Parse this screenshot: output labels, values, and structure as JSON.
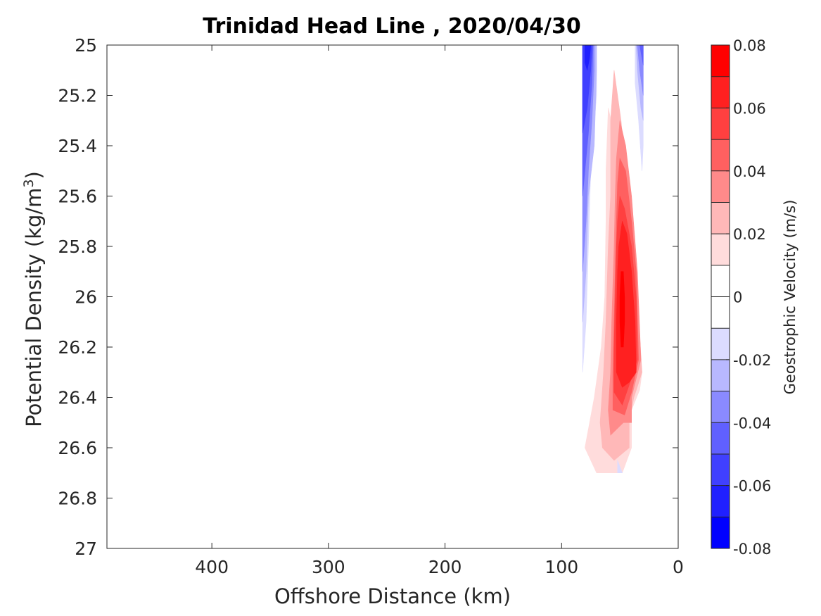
{
  "chart_data": {
    "type": "contour",
    "title": "Trinidad Head Line , 2020/04/30",
    "xlabel": "Offshore Distance (km)",
    "ylabel_main": "Potential Density (kg/m",
    "ylabel_sup": "3",
    "ylabel_close": ")",
    "xlim": [
      490,
      0
    ],
    "ylim": [
      25,
      27
    ],
    "x_reversed": true,
    "y_reversed": true,
    "xticks": [
      400,
      300,
      200,
      100,
      0
    ],
    "xtick_labels": [
      "400",
      "300",
      "200",
      "100",
      "0"
    ],
    "yticks": [
      25,
      25.2,
      25.4,
      25.6,
      25.8,
      26,
      26.2,
      26.4,
      26.6,
      26.8,
      27
    ],
    "ytick_labels": [
      "25",
      "25.2",
      "25.4",
      "25.6",
      "25.8",
      "26",
      "26.2",
      "26.4",
      "26.6",
      "26.8",
      "27"
    ],
    "colorbar": {
      "label": "Geostrophic Velocity (m/s)",
      "limits": [
        -0.08,
        0.08
      ],
      "ticks": [
        0.08,
        0.06,
        0.04,
        0.02,
        0,
        -0.02,
        -0.04,
        -0.06,
        -0.08
      ],
      "tick_labels": [
        "0.08",
        "0.06",
        "0.04",
        "0.02",
        "0",
        "-0.02",
        "-0.04",
        "-0.06",
        "-0.08"
      ],
      "bands_top_to_bottom": [
        "#ff0000",
        "#ff2020",
        "#ff4040",
        "#ff6060",
        "#ff8a8a",
        "#ffb8b8",
        "#ffdcdc",
        "#ffffff",
        "#ffffff",
        "#dcdcff",
        "#b8b8ff",
        "#8a8aff",
        "#6060ff",
        "#4040ff",
        "#2020ff",
        "#0000ff"
      ]
    },
    "contour_regions": [
      {
        "level": 0.005,
        "color": "#ffdcdc",
        "points": [
          [
            60,
            25.25
          ],
          [
            55,
            25.35
          ],
          [
            52,
            25.5
          ],
          [
            50,
            25.6
          ],
          [
            38,
            26.1
          ],
          [
            31,
            26.3
          ],
          [
            33,
            26.37
          ],
          [
            40,
            26.45
          ],
          [
            40,
            26.6
          ],
          [
            48,
            26.7
          ],
          [
            70,
            26.7
          ],
          [
            80,
            26.6
          ],
          [
            72,
            26.4
          ],
          [
            66,
            26.2
          ],
          [
            63,
            26.0
          ],
          [
            62,
            25.7
          ],
          [
            62,
            25.5
          ]
        ]
      },
      {
        "level": 0.015,
        "color": "#ffb8b8",
        "points": [
          [
            55,
            25.1
          ],
          [
            49,
            25.3
          ],
          [
            45,
            25.5
          ],
          [
            38,
            25.8
          ],
          [
            31,
            26.3
          ],
          [
            38,
            26.4
          ],
          [
            42,
            26.5
          ],
          [
            42,
            26.6
          ],
          [
            55,
            26.65
          ],
          [
            65,
            26.6
          ],
          [
            67,
            26.5
          ],
          [
            64,
            26.3
          ],
          [
            62,
            26.1
          ],
          [
            60,
            25.8
          ],
          [
            58,
            25.6
          ],
          [
            58,
            25.3
          ]
        ]
      },
      {
        "level": 0.025,
        "color": "#ff8a8a",
        "points": [
          [
            50,
            25.3
          ],
          [
            45,
            25.4
          ],
          [
            40,
            25.6
          ],
          [
            35,
            25.9
          ],
          [
            32,
            26.25
          ],
          [
            40,
            26.4
          ],
          [
            40,
            26.5
          ],
          [
            47,
            26.5
          ],
          [
            58,
            26.55
          ],
          [
            60,
            26.45
          ],
          [
            58,
            26.3
          ],
          [
            57,
            26.1
          ],
          [
            55,
            25.8
          ],
          [
            54,
            25.6
          ],
          [
            53,
            25.45
          ]
        ]
      },
      {
        "level": 0.035,
        "color": "#ff6060",
        "points": [
          [
            50,
            25.45
          ],
          [
            45,
            25.5
          ],
          [
            40,
            25.7
          ],
          [
            36,
            25.9
          ],
          [
            34,
            26.25
          ],
          [
            40,
            26.38
          ],
          [
            46,
            26.47
          ],
          [
            56,
            26.45
          ],
          [
            56,
            26.3
          ],
          [
            55,
            26.1
          ],
          [
            54,
            25.9
          ],
          [
            53,
            25.7
          ],
          [
            52,
            25.55
          ]
        ]
      },
      {
        "level": 0.045,
        "color": "#ff4040",
        "points": [
          [
            50,
            25.6
          ],
          [
            46,
            25.65
          ],
          [
            40,
            25.8
          ],
          [
            36,
            26.0
          ],
          [
            35,
            26.25
          ],
          [
            42,
            26.35
          ],
          [
            48,
            26.43
          ],
          [
            55,
            26.38
          ],
          [
            55,
            26.2
          ],
          [
            54,
            26.0
          ],
          [
            53,
            25.8
          ],
          [
            52,
            25.7
          ]
        ]
      },
      {
        "level": 0.055,
        "color": "#ff2020",
        "points": [
          [
            48,
            25.7
          ],
          [
            44,
            25.75
          ],
          [
            40,
            25.9
          ],
          [
            37,
            26.1
          ],
          [
            36,
            26.3
          ],
          [
            42,
            26.34
          ],
          [
            48,
            26.36
          ],
          [
            53,
            26.3
          ],
          [
            53,
            26.1
          ],
          [
            52,
            25.9
          ],
          [
            51,
            25.8
          ]
        ]
      },
      {
        "level": 0.065,
        "color": "#ff0000",
        "points": [
          [
            49,
            25.9
          ],
          [
            47,
            25.9
          ],
          [
            46,
            26.0
          ],
          [
            46,
            26.1
          ],
          [
            47,
            26.2
          ],
          [
            49,
            26.2
          ],
          [
            50,
            26.1
          ],
          [
            50,
            26.0
          ]
        ]
      },
      {
        "level": -0.005,
        "color": "#dcdcff",
        "points": [
          [
            82,
            25.0
          ],
          [
            70,
            25.0
          ],
          [
            70,
            25.2
          ],
          [
            75,
            25.5
          ],
          [
            77,
            25.8
          ],
          [
            79,
            26.1
          ],
          [
            82,
            26.3
          ]
        ]
      },
      {
        "level": -0.005,
        "color": "#dcdcff",
        "points": [
          [
            30,
            25.0
          ],
          [
            37,
            25.0
          ],
          [
            37,
            25.15
          ],
          [
            34,
            25.3
          ],
          [
            31,
            25.5
          ],
          [
            30,
            25.4
          ]
        ]
      },
      {
        "level": -0.005,
        "color": "#dcdcff",
        "points": [
          [
            48,
            26.7
          ],
          [
            52,
            26.7
          ],
          [
            52,
            26.65
          ]
        ]
      },
      {
        "level": -0.015,
        "color": "#b8b8ff",
        "points": [
          [
            82,
            25.0
          ],
          [
            70,
            25.0
          ],
          [
            70,
            25.1
          ],
          [
            72,
            25.4
          ],
          [
            77,
            25.6
          ],
          [
            79,
            25.9
          ],
          [
            82,
            26.1
          ]
        ]
      },
      {
        "level": -0.015,
        "color": "#b8b8ff",
        "points": [
          [
            30,
            25.0
          ],
          [
            36,
            25.0
          ],
          [
            35,
            25.1
          ],
          [
            32,
            25.25
          ],
          [
            30,
            25.3
          ]
        ]
      },
      {
        "level": -0.025,
        "color": "#8a8aff",
        "points": [
          [
            82,
            25.0
          ],
          [
            72,
            25.0
          ],
          [
            72,
            25.1
          ],
          [
            74,
            25.3
          ],
          [
            77,
            25.5
          ],
          [
            79,
            25.7
          ],
          [
            82,
            25.9
          ]
        ]
      },
      {
        "level": -0.025,
        "color": "#8a8aff",
        "points": [
          [
            30,
            25.0
          ],
          [
            35,
            25.0
          ],
          [
            33,
            25.1
          ],
          [
            30,
            25.2
          ]
        ]
      },
      {
        "level": -0.035,
        "color": "#6060ff",
        "points": [
          [
            82,
            25.0
          ],
          [
            73,
            25.0
          ],
          [
            74,
            25.15
          ],
          [
            77,
            25.35
          ],
          [
            80,
            25.5
          ],
          [
            82,
            25.6
          ]
        ]
      },
      {
        "level": -0.035,
        "color": "#6060ff",
        "points": [
          [
            30,
            25.0
          ],
          [
            33,
            25.0
          ],
          [
            30,
            25.08
          ]
        ]
      },
      {
        "level": -0.045,
        "color": "#4040ff",
        "points": [
          [
            82,
            25.0
          ],
          [
            74,
            25.0
          ],
          [
            75,
            25.1
          ],
          [
            78,
            25.25
          ],
          [
            82,
            25.35
          ]
        ]
      },
      {
        "level": -0.055,
        "color": "#2020ff",
        "points": [
          [
            80,
            25.0
          ],
          [
            75,
            25.0
          ],
          [
            76,
            25.05
          ],
          [
            78,
            25.1
          ],
          [
            80,
            25.07
          ]
        ]
      }
    ]
  }
}
